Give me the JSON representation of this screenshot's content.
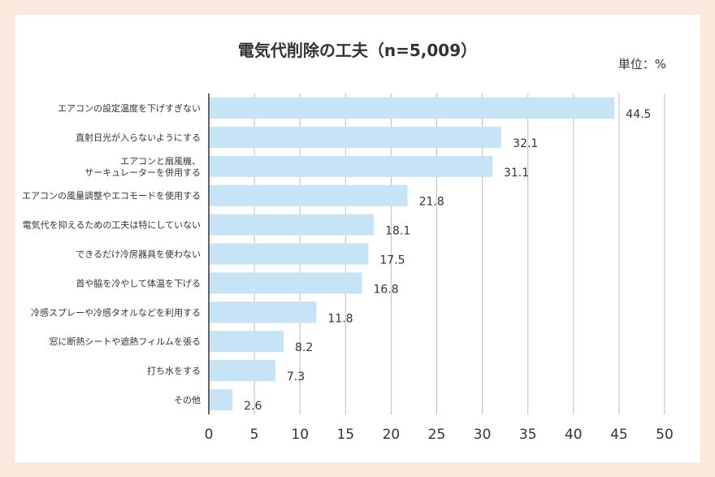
{
  "chart_data": {
    "type": "bar",
    "orientation": "horizontal",
    "title": "電気代削除の工夫（n=5,009）",
    "unit_label": "単位：%",
    "categories": [
      [
        "エアコンの設定温度を下げすぎない"
      ],
      [
        "直射日光が入らないようにする"
      ],
      [
        "エアコンと扇風機、",
        "サーキュレーターを併用する"
      ],
      [
        "エアコンの風量調整やエコモードを使用する"
      ],
      [
        "電気代を抑えるための工夫は特にしていない"
      ],
      [
        "できるだけ冷房器具を使わない"
      ],
      [
        "首や脇を冷やして体温を下げる"
      ],
      [
        "冷感スプレーや冷感タオルなどを利用する"
      ],
      [
        "窓に断熱シートや遮熱フィルムを張る"
      ],
      [
        "打ち水をする"
      ],
      [
        "その他"
      ]
    ],
    "values": [
      44.5,
      32.1,
      31.1,
      21.8,
      18.1,
      17.5,
      16.8,
      11.8,
      8.2,
      7.3,
      2.6
    ],
    "value_labels": [
      "44.5",
      "32.1",
      "31.1",
      "21.8",
      "18.1",
      "17.5",
      "16.8",
      "11.8",
      "8.2",
      "7.3",
      "2.6"
    ],
    "xlim": [
      0,
      50
    ],
    "xticks": [
      "0",
      "5",
      "10",
      "15",
      "20",
      "25",
      "30",
      "35",
      "40",
      "45",
      "50"
    ],
    "grid": true,
    "bar_color": "#c6e4f5",
    "grid_color": "#bdbdbd",
    "axis_color": "#333333"
  },
  "page": {
    "background": "#fde8dd",
    "card_background": "#ffffff"
  }
}
